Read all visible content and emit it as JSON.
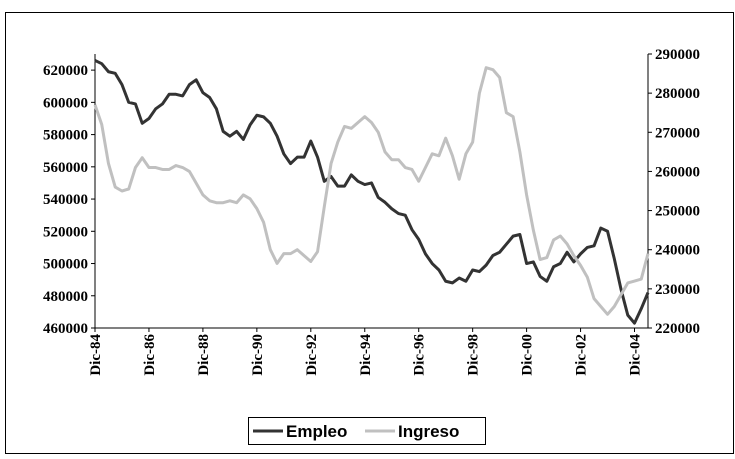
{
  "chart_data": {
    "type": "line",
    "categories": [
      "Dic-84",
      null,
      null,
      null,
      null,
      null,
      null,
      null,
      "Dic-86",
      null,
      null,
      null,
      null,
      null,
      null,
      null,
      "Dic-88",
      null,
      null,
      null,
      null,
      null,
      null,
      null,
      "Dic-90",
      null,
      null,
      null,
      null,
      null,
      null,
      null,
      "Dic-92",
      null,
      null,
      null,
      null,
      null,
      null,
      null,
      "Dic-94",
      null,
      null,
      null,
      null,
      null,
      null,
      null,
      "Dic-96",
      null,
      null,
      null,
      null,
      null,
      null,
      null,
      "Dic-98",
      null,
      null,
      null,
      null,
      null,
      null,
      null,
      "Dic-00",
      null,
      null,
      null,
      null,
      null,
      null,
      null,
      "Dic-02",
      null,
      null,
      null,
      null,
      null,
      null,
      null,
      "Dic-04",
      null,
      null
    ],
    "series": [
      {
        "name": "Empleo",
        "color": "#333333",
        "values": [
          626000,
          624000,
          619000,
          618000,
          611000,
          600000,
          599000,
          587000,
          590000,
          596000,
          599000,
          605000,
          605000,
          604000,
          611000,
          614000,
          606000,
          603000,
          596000,
          582000,
          579000,
          582000,
          577000,
          586000,
          592000,
          591000,
          587000,
          579000,
          568000,
          562000,
          566000,
          566000,
          576000,
          566000,
          551000,
          554000,
          548000,
          548000,
          555000,
          551000,
          549000,
          550000,
          541000,
          538000,
          534000,
          531000,
          530000,
          521000,
          515000,
          506000,
          500000,
          496000,
          489000,
          488000,
          491000,
          489000,
          496000,
          495000,
          499000,
          505000,
          507000,
          512000,
          517000,
          518000,
          500000,
          501000,
          492000,
          489000,
          498000,
          500000,
          507000,
          501000,
          506000,
          510000,
          511000,
          522000,
          520000,
          503000,
          484000,
          468000,
          463000,
          472000,
          482000
        ]
      },
      {
        "name": "Ingreso",
        "color": "#c0c0c0",
        "axis": "y2",
        "values": [
          277000,
          272000,
          262000,
          256000,
          255000,
          255500,
          261000,
          263500,
          261000,
          261000,
          260500,
          260500,
          261500,
          261000,
          260000,
          257000,
          254000,
          252500,
          252000,
          252000,
          252500,
          252000,
          254000,
          253000,
          250500,
          247000,
          240000,
          236500,
          239000,
          239000,
          240000,
          238500,
          237000,
          239500,
          251000,
          262000,
          267500,
          271500,
          271000,
          272500,
          274000,
          272500,
          270000,
          265000,
          263000,
          263000,
          261000,
          260500,
          257500,
          261000,
          264500,
          264000,
          268500,
          264000,
          258000,
          264500,
          267500,
          280000,
          286500,
          286000,
          284000,
          275000,
          274000,
          265000,
          254000,
          245000,
          237500,
          238000,
          242500,
          243500,
          241500,
          238500,
          236000,
          233000,
          227500,
          225500,
          223500,
          225500,
          228500,
          231500,
          232000,
          232500,
          239000
        ]
      }
    ],
    "ylim": [
      460000,
      630000
    ],
    "yticks": [
      460000,
      480000,
      500000,
      520000,
      540000,
      560000,
      580000,
      600000,
      620000
    ],
    "y2lim": [
      220000,
      290000
    ],
    "y2ticks": [
      220000,
      230000,
      240000,
      250000,
      260000,
      270000,
      280000,
      290000
    ],
    "legend": "bottom"
  }
}
